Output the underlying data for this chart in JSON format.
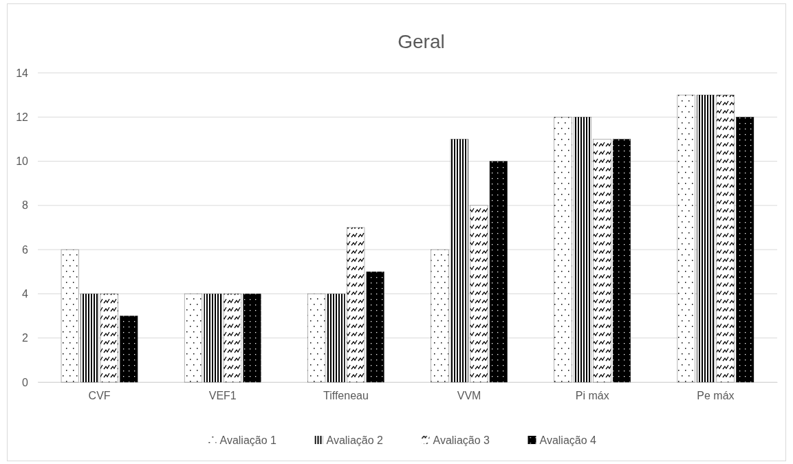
{
  "chart_data": {
    "type": "bar",
    "title": "Geral",
    "categories": [
      "CVF",
      "VEF1",
      "Tiffeneau",
      "VVM",
      "Pi máx",
      "Pe máx"
    ],
    "series": [
      {
        "name": "Avaliação 1",
        "color": "#000000",
        "values": [
          6,
          4,
          4,
          6,
          12,
          13
        ]
      },
      {
        "name": "Avaliação 2",
        "color": "#000000",
        "values": [
          4,
          4,
          4,
          11,
          12,
          13
        ]
      },
      {
        "name": "Avaliação 3",
        "color": "#000000",
        "values": [
          4,
          4,
          7,
          8,
          11,
          13
        ]
      },
      {
        "name": "Avaliação 4",
        "color": "#000000",
        "values": [
          3,
          4,
          5,
          10,
          11,
          12
        ]
      }
    ],
    "ylim": [
      0,
      14
    ],
    "yticks": [
      0,
      2,
      4,
      6,
      8,
      10,
      12,
      14
    ],
    "grid": "y",
    "legend": "bottom"
  }
}
